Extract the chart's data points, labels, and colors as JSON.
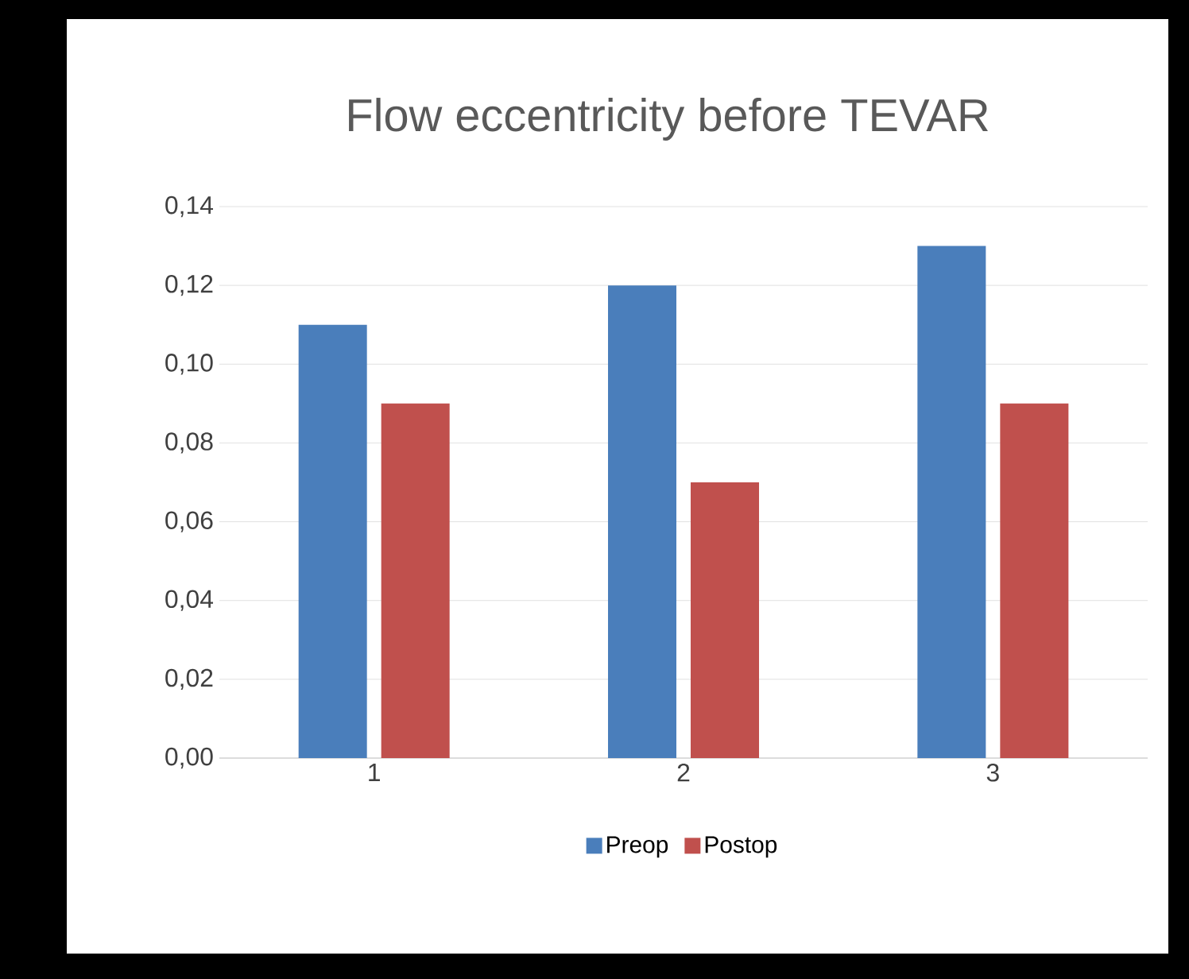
{
  "chart_data": {
    "type": "bar",
    "title": "Flow eccentricity before TEVAR",
    "categories": [
      "1",
      "2",
      "3"
    ],
    "series": [
      {
        "name": "Preop",
        "color": "#4a7ebb",
        "values": [
          0.11,
          0.12,
          0.13
        ]
      },
      {
        "name": "Postop",
        "color": "#c0504d",
        "values": [
          0.09,
          0.07,
          0.09
        ]
      }
    ],
    "ylim": [
      0,
      0.14
    ],
    "yticks": [
      {
        "value": 0,
        "label": "0,00"
      },
      {
        "value": 0.02,
        "label": "0,02"
      },
      {
        "value": 0.04,
        "label": "0,04"
      },
      {
        "value": 0.06,
        "label": "0,06"
      },
      {
        "value": 0.08,
        "label": "0,08"
      },
      {
        "value": 0.1,
        "label": "0,10"
      },
      {
        "value": 0.12,
        "label": "0,12"
      },
      {
        "value": 0.14,
        "label": "0,14"
      }
    ],
    "grid": "y",
    "legend": "bottom"
  }
}
